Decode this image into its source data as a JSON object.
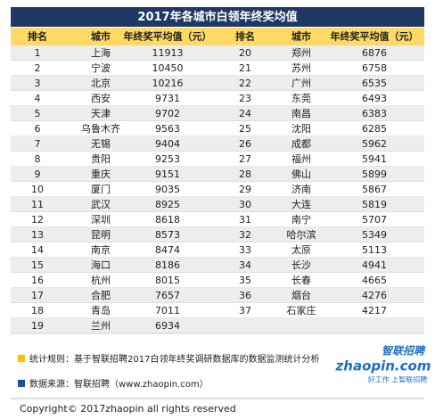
{
  "header": {
    "title": "2017年各城市白领年终奖均值"
  },
  "table": {
    "columns": [
      "排名",
      "城市",
      "年终奖平均值（元）",
      "排名",
      "城市",
      "年终奖平均值（元）"
    ],
    "rows": [
      [
        1,
        "上海",
        11913,
        20,
        "郑州",
        6876
      ],
      [
        2,
        "宁波",
        10450,
        21,
        "苏州",
        6758
      ],
      [
        3,
        "北京",
        10216,
        22,
        "广州",
        6535
      ],
      [
        4,
        "西安",
        9731,
        23,
        "东莞",
        6493
      ],
      [
        5,
        "天津",
        9702,
        24,
        "南昌",
        6383
      ],
      [
        6,
        "乌鲁木齐",
        9563,
        25,
        "沈阳",
        6285
      ],
      [
        7,
        "无锡",
        9404,
        26,
        "成都",
        5962
      ],
      [
        8,
        "贵阳",
        9253,
        27,
        "福州",
        5941
      ],
      [
        9,
        "重庆",
        9151,
        28,
        "佛山",
        5899
      ],
      [
        10,
        "厦门",
        9035,
        29,
        "济南",
        5867
      ],
      [
        11,
        "武汉",
        8925,
        30,
        "大连",
        5819
      ],
      [
        12,
        "深圳",
        8618,
        31,
        "南宁",
        5707
      ],
      [
        13,
        "昆明",
        8573,
        32,
        "哈尔滨",
        5349
      ],
      [
        14,
        "南京",
        8474,
        33,
        "太原",
        5113
      ],
      [
        15,
        "海口",
        8186,
        34,
        "长沙",
        4941
      ],
      [
        16,
        "杭州",
        8015,
        35,
        "长春",
        4665
      ],
      [
        17,
        "合肥",
        7657,
        36,
        "烟台",
        4276
      ],
      [
        18,
        "青岛",
        7011,
        37,
        "石家庄",
        4217
      ],
      [
        19,
        "兰州",
        6934
      ]
    ]
  },
  "notes": [
    "统计规则：基于智联招聘2017白领年终奖调研数据库的数据监测统计分析",
    "数据来源：智联招聘（www.zhaopin.com）"
  ],
  "logo": {
    "name": "智联招聘",
    "site": "zhaopin.com",
    "slogan": "好工作 上智联招聘"
  },
  "copyright": "Copyright© 2017zhaopin all rights reserved"
}
